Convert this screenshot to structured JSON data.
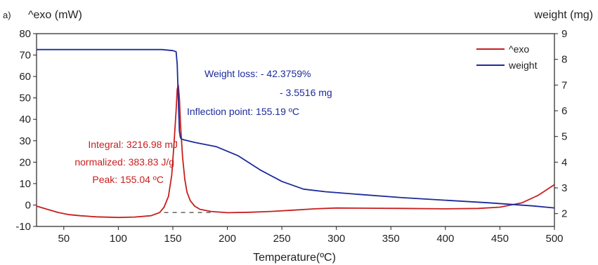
{
  "panel_label": "a)",
  "colors": {
    "exo": "#c81e1e",
    "weight": "#1c2a9a",
    "baseline": "#444444",
    "axis": "#222222"
  },
  "chart_data": {
    "type": "line",
    "title": "",
    "xlabel": "Temperature(ºC)",
    "ylabel_left": "^exo (mW)",
    "ylabel_right": "weight (mg)",
    "xlim": [
      25,
      500
    ],
    "ylim_left": [
      -10,
      80
    ],
    "ylim_right": [
      1.5,
      9
    ],
    "grid": false,
    "legend_position": "top-right",
    "x_ticks": [
      50,
      100,
      150,
      200,
      250,
      300,
      350,
      400,
      450,
      500
    ],
    "y_left_ticks": [
      -10,
      0,
      10,
      20,
      30,
      40,
      50,
      60,
      70,
      80
    ],
    "y_right_ticks": [
      2,
      3,
      4,
      5,
      6,
      7,
      8,
      9
    ],
    "series": [
      {
        "name": "^exo",
        "axis": "left",
        "x": [
          25,
          35,
          45,
          55,
          65,
          80,
          100,
          115,
          130,
          138,
          142,
          146,
          149,
          151,
          153,
          154,
          155,
          156,
          157,
          159,
          161,
          163,
          166,
          170,
          175,
          185,
          200,
          220,
          240,
          260,
          280,
          300,
          330,
          360,
          400,
          430,
          450,
          470,
          485,
          500
        ],
        "y": [
          -0.5,
          -2,
          -3.5,
          -4.5,
          -5,
          -5.5,
          -5.8,
          -5.6,
          -5,
          -3.5,
          -1,
          4,
          14,
          28,
          44,
          54,
          56,
          50,
          38,
          22,
          12,
          6,
          2,
          -0.5,
          -2,
          -3,
          -3.6,
          -3.4,
          -3,
          -2.4,
          -1.8,
          -1.4,
          -1.5,
          -1.6,
          -1.8,
          -1.6,
          -1,
          1,
          4.5,
          9.5
        ]
      },
      {
        "name": "weight",
        "axis": "right",
        "x": [
          25,
          100,
          140,
          150,
          153,
          154,
          155,
          156,
          157,
          158,
          160,
          170,
          190,
          210,
          230,
          250,
          270,
          290,
          320,
          360,
          400,
          440,
          480,
          500
        ],
        "y": [
          8.38,
          8.38,
          8.38,
          8.34,
          8.3,
          7.8,
          6.5,
          5.2,
          4.95,
          4.9,
          4.87,
          4.77,
          4.6,
          4.25,
          3.7,
          3.25,
          2.95,
          2.85,
          2.75,
          2.62,
          2.52,
          2.42,
          2.3,
          2.22
        ]
      }
    ],
    "baseline": {
      "x": [
        142,
        185
      ],
      "y": [
        -3.5,
        -3.5
      ]
    },
    "annotations": {
      "weight_loss_1": "Weight loss: - 42.3759%",
      "weight_loss_2": "- 3.5516 mg",
      "inflection": "Inflection point: 155.19 ºC",
      "integral": "Integral: 3216.98 mJ",
      "normalized": "normalized: 383.83 J/g",
      "peak": "Peak: 155.04 ºC"
    }
  }
}
